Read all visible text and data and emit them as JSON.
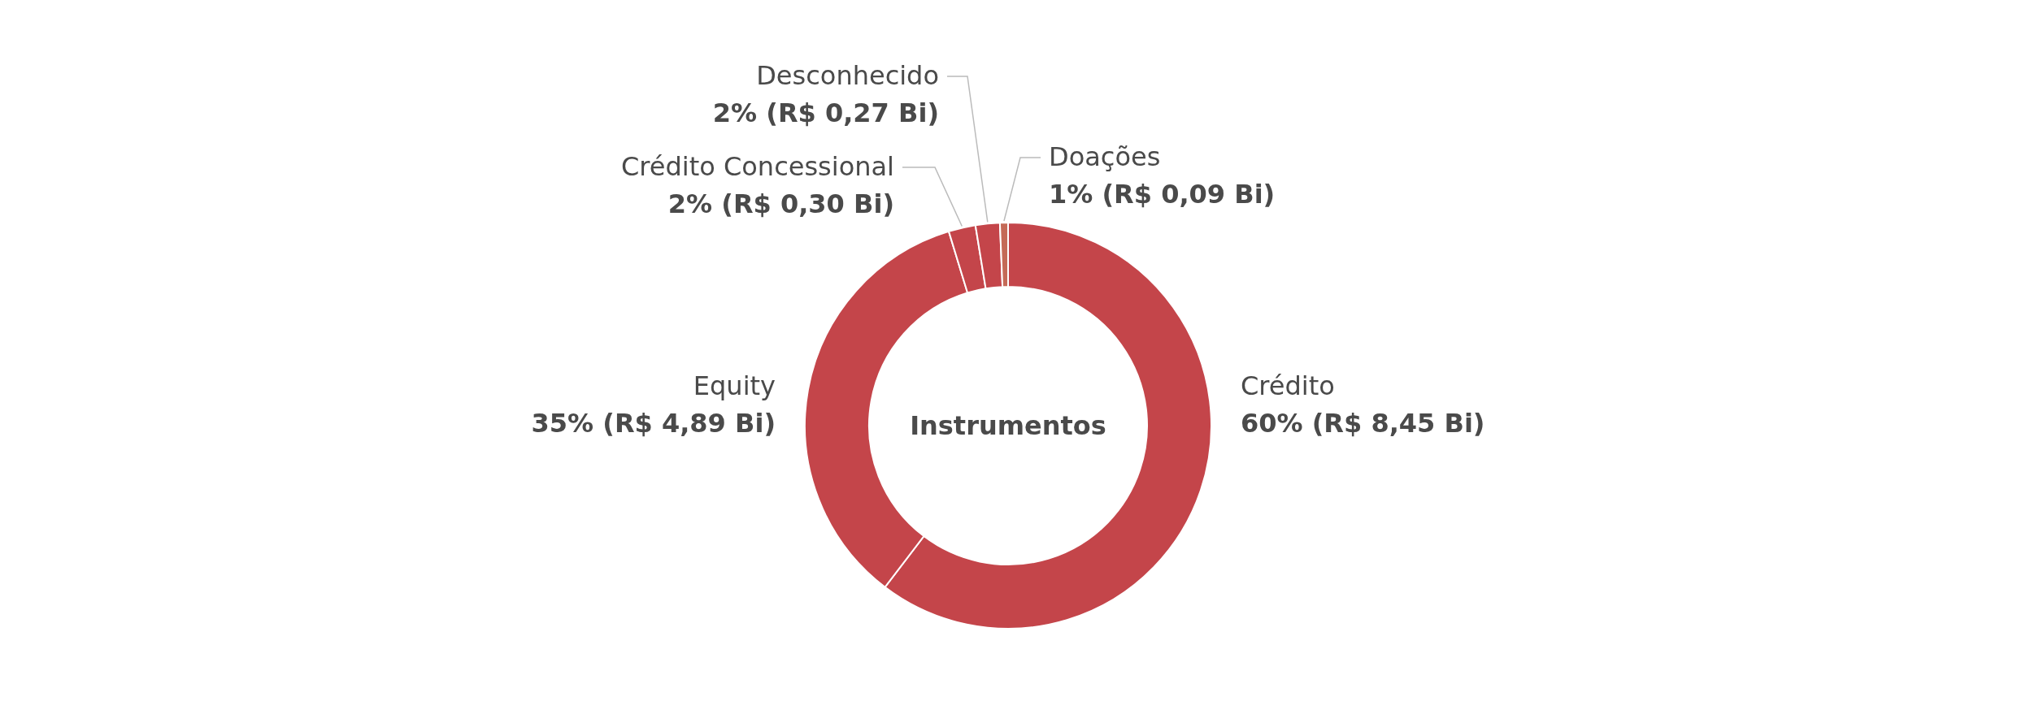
{
  "chart_data": {
    "type": "donut",
    "title": "Instrumentos",
    "categories": [
      "Crédito",
      "Equity",
      "Crédito Concessional",
      "Desconhecido",
      "Doações"
    ],
    "values": [
      8.45,
      4.89,
      0.3,
      0.27,
      0.09
    ],
    "value_labels": [
      "60% (R$ 8,45 Bi)",
      "35% (R$ 4,89 Bi)",
      "2% (R$ 0,30 Bi)",
      "2% (R$ 0,27 Bi)",
      "1% (R$ 0,09 Bi)"
    ],
    "colors": [
      "#c4454a",
      "#c4454a",
      "#c4454a",
      "#c4454a",
      "#c46a57"
    ]
  }
}
